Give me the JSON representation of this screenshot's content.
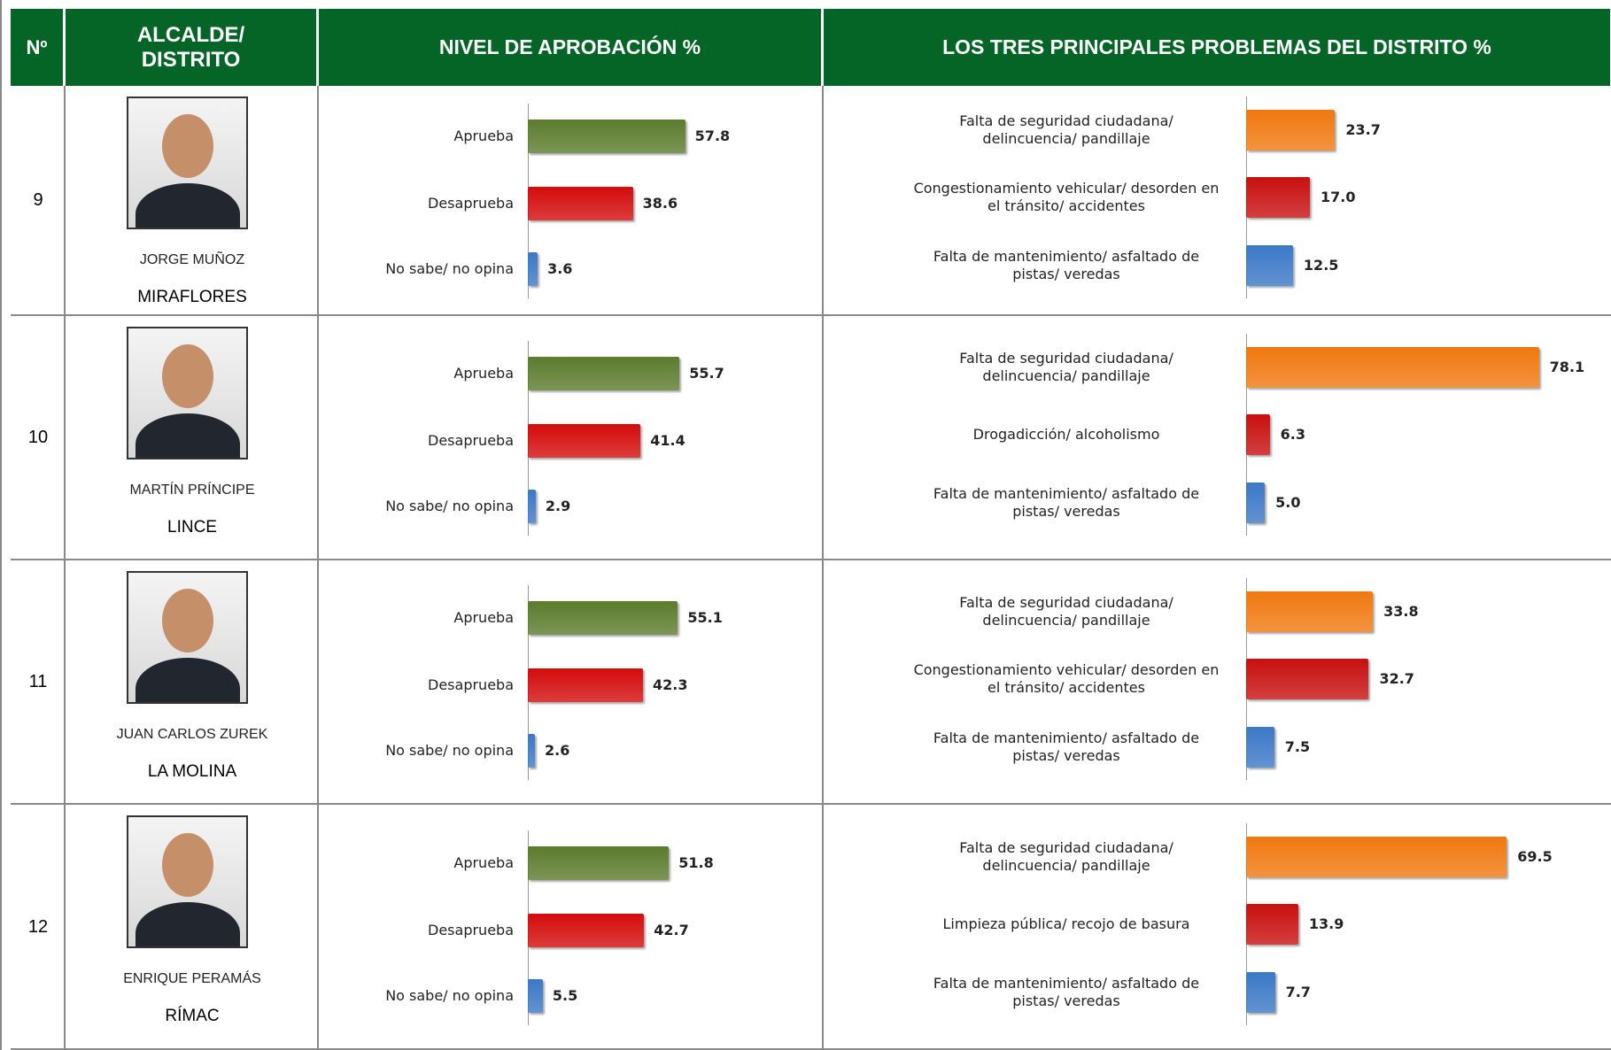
{
  "header": {
    "number": "Nº",
    "mayor": "ALCALDE/ DISTRITO",
    "approval": "NIVEL DE APROBACIÓN  %",
    "problems": "LOS TRES PRINCIPALES PROBLEMAS DEL DISTRITO  %"
  },
  "approval_colors": [
    "#5b7b2c",
    "#d40b0b",
    "#3b78c6"
  ],
  "problem_colors": [
    "#f0780f",
    "#c80f0f",
    "#3b78c6"
  ],
  "rows": [
    {
      "number": 9,
      "name": "JORGE MUÑOZ",
      "district": "MIRAFLORES",
      "approval": {
        "categories": [
          "Aprueba",
          "Desaprueba",
          "No sabe/ no opina"
        ],
        "values": [
          57.8,
          38.6,
          3.6
        ],
        "value_labels": [
          "57.8",
          "38.6",
          "3.6"
        ]
      },
      "problems": {
        "categories": [
          "Falta de seguridad ciudadana/ delincuencia/ pandillaje",
          "Congestionamiento vehicular/ desorden en el tránsito/ accidentes",
          "Falta de mantenimiento/ asfaltado de pistas/ veredas"
        ],
        "values": [
          23.7,
          17.0,
          12.5
        ],
        "value_labels": [
          "23.7",
          "17.0",
          "12.5"
        ]
      }
    },
    {
      "number": 10,
      "name": "MARTÍN PRÍNCIPE",
      "district": "LINCE",
      "approval": {
        "categories": [
          "Aprueba",
          "Desaprueba",
          "No sabe/ no opina"
        ],
        "values": [
          55.7,
          41.4,
          2.9
        ],
        "value_labels": [
          "55.7",
          "41.4",
          "2.9"
        ]
      },
      "problems": {
        "categories": [
          "Falta de seguridad ciudadana/ delincuencia/ pandillaje",
          "Drogadicción/ alcoholismo",
          "Falta de mantenimiento/ asfaltado de pistas/ veredas"
        ],
        "values": [
          78.1,
          6.3,
          5.0
        ],
        "value_labels": [
          "78.1",
          "6.3",
          "5.0"
        ]
      }
    },
    {
      "number": 11,
      "name": "JUAN CARLOS ZUREK",
      "district": "LA MOLINA",
      "approval": {
        "categories": [
          "Aprueba",
          "Desaprueba",
          "No sabe/ no opina"
        ],
        "values": [
          55.1,
          42.3,
          2.6
        ],
        "value_labels": [
          "55.1",
          "42.3",
          "2.6"
        ]
      },
      "problems": {
        "categories": [
          "Falta de seguridad ciudadana/ delincuencia/ pandillaje",
          "Congestionamiento vehicular/ desorden en el tránsito/ accidentes",
          "Falta de mantenimiento/ asfaltado de pistas/ veredas"
        ],
        "values": [
          33.8,
          32.7,
          7.5
        ],
        "value_labels": [
          "33.8",
          "32.7",
          "7.5"
        ]
      }
    },
    {
      "number": 12,
      "name": "ENRIQUE PERAMÁS",
      "district": "RÍMAC",
      "approval": {
        "categories": [
          "Aprueba",
          "Desaprueba",
          "No sabe/ no opina"
        ],
        "values": [
          51.8,
          42.7,
          5.5
        ],
        "value_labels": [
          "51.8",
          "42.7",
          "5.5"
        ]
      },
      "problems": {
        "categories": [
          "Falta de seguridad ciudadana/ delincuencia/ pandillaje",
          "Limpieza pública/ recojo de basura",
          "Falta de mantenimiento/ asfaltado de pistas/ veredas"
        ],
        "values": [
          69.5,
          13.9,
          7.7
        ],
        "value_labels": [
          "69.5",
          "13.9",
          "7.7"
        ]
      }
    }
  ]
}
